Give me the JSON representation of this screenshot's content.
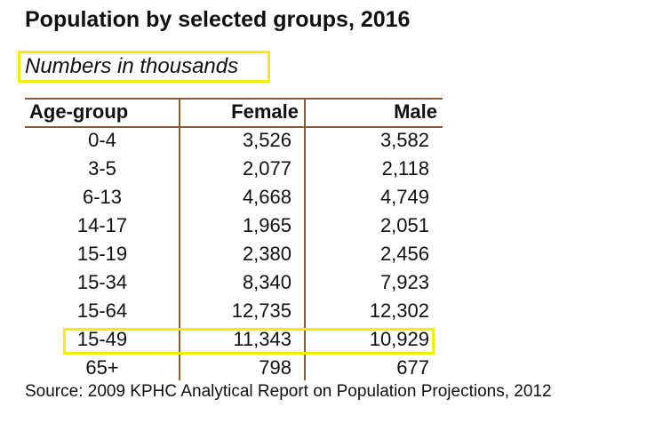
{
  "title": "Population by selected groups, 2016",
  "subtitle": "Numbers in thousands",
  "source": "Source: 2009 KPHC Analytical Report on Population Projections, 2012",
  "colors": {
    "highlight": "#f4ee00",
    "rule": "#8b5a2b"
  },
  "chart_data": {
    "type": "table",
    "columns": [
      "Age-group",
      "Female",
      "Male"
    ],
    "rows": [
      [
        "0-4",
        "3,526",
        "3,582"
      ],
      [
        "3-5",
        "2,077",
        "2,118"
      ],
      [
        "6-13",
        "4,668",
        "4,749"
      ],
      [
        "14-17",
        "1,965",
        "2,051"
      ],
      [
        "15-19",
        "2,380",
        "2,456"
      ],
      [
        "15-34",
        "8,340",
        "7,923"
      ],
      [
        "15-64",
        "12,735",
        "12,302"
      ],
      [
        "15-49",
        "11,343",
        "10,929"
      ],
      [
        "65+",
        "798",
        "677"
      ]
    ],
    "highlighted_row": "15-49"
  }
}
